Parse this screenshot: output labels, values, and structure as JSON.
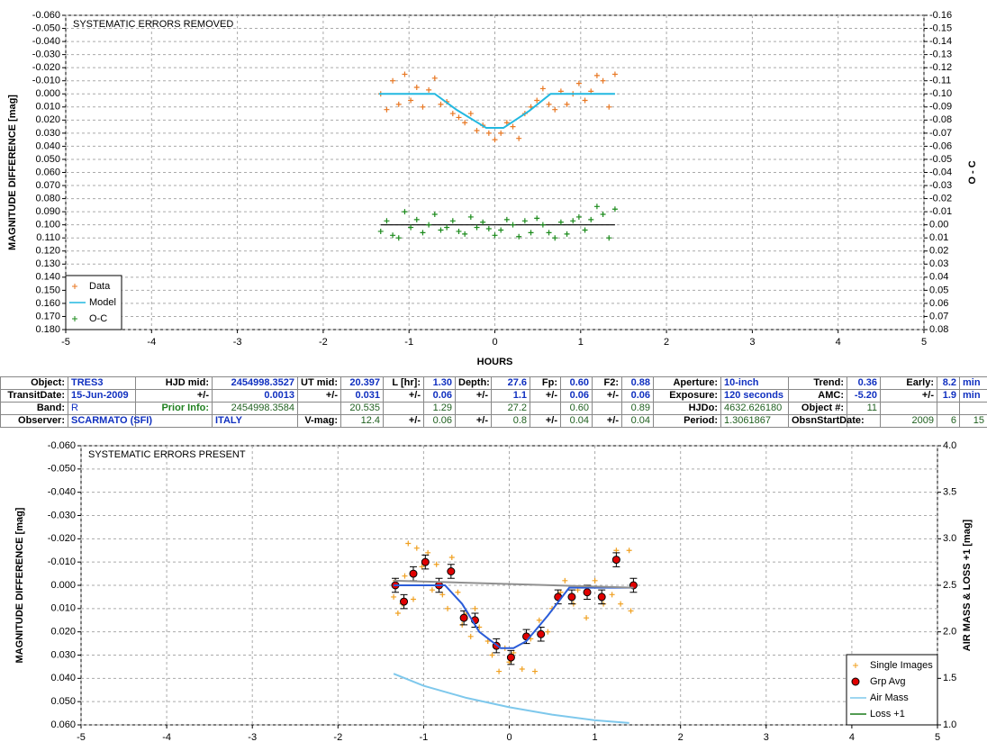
{
  "chart_data": [
    {
      "type": "scatter",
      "title": "SYSTEMATIC ERRORS REMOVED",
      "xlabel": "HOURS",
      "ylabel": "MAGNITUDE DIFFERENCE [mag]",
      "y2label": "O - C",
      "xlim": [
        -5,
        5
      ],
      "xticks": [
        -5,
        -4,
        -3,
        -2,
        -1,
        0,
        1,
        2,
        3,
        4,
        5
      ],
      "ylim": [
        -0.06,
        0.18
      ],
      "y_inverted": true,
      "yticks": [
        {
          "value": -0.06,
          "label": "-0.060"
        },
        {
          "value": -0.05,
          "label": "-0.050"
        },
        {
          "value": -0.04,
          "label": "-0.040"
        },
        {
          "value": -0.03,
          "label": "-0.030"
        },
        {
          "value": -0.02,
          "label": "-0.020"
        },
        {
          "value": -0.01,
          "label": "-0.010"
        },
        {
          "value": 0,
          "label": "0.000"
        },
        {
          "value": 0.01,
          "label": "0.010"
        },
        {
          "value": 0.02,
          "label": "0.020"
        },
        {
          "value": 0.03,
          "label": "0.030"
        },
        {
          "value": 0.04,
          "label": "0.040"
        },
        {
          "value": 0.05,
          "label": "0.050"
        },
        {
          "value": 0.06,
          "label": "0.060"
        },
        {
          "value": 0.07,
          "label": "0.070"
        },
        {
          "value": 0.08,
          "label": "0.080"
        },
        {
          "value": 0.09,
          "label": "0.090"
        },
        {
          "value": 0.1,
          "label": "0.100"
        },
        {
          "value": 0.11,
          "label": "0.110"
        },
        {
          "value": 0.12,
          "label": "0.120"
        },
        {
          "value": 0.13,
          "label": "0.130"
        },
        {
          "value": 0.14,
          "label": "0.140"
        },
        {
          "value": 0.15,
          "label": "0.150"
        },
        {
          "value": 0.16,
          "label": "0.160"
        },
        {
          "value": 0.17,
          "label": "0.170"
        },
        {
          "value": 0.18,
          "label": "0.180"
        }
      ],
      "y2lim": [
        -0.16,
        0.08
      ],
      "y2_inverted": true,
      "y2ticks": [
        {
          "value": -0.16,
          "label": "-0.16"
        },
        {
          "value": -0.15,
          "label": "-0.15"
        },
        {
          "value": -0.14,
          "label": "-0.14"
        },
        {
          "value": -0.13,
          "label": "-0.13"
        },
        {
          "value": -0.12,
          "label": "-0.12"
        },
        {
          "value": -0.11,
          "label": "-0.11"
        },
        {
          "value": -0.1,
          "label": "-0.10"
        },
        {
          "value": -0.09,
          "label": "-0.09"
        },
        {
          "value": -0.08,
          "label": "-0.08"
        },
        {
          "value": -0.07,
          "label": "-0.07"
        },
        {
          "value": -0.06,
          "label": "-0.06"
        },
        {
          "value": -0.05,
          "label": "-0.05"
        },
        {
          "value": -0.04,
          "label": "-0.04"
        },
        {
          "value": -0.03,
          "label": "-0.03"
        },
        {
          "value": -0.02,
          "label": "-0.02"
        },
        {
          "value": -0.01,
          "label": "-0.01"
        },
        {
          "value": 0,
          "label": "0.00"
        },
        {
          "value": 0.01,
          "label": "0.01"
        },
        {
          "value": 0.02,
          "label": "0.02"
        },
        {
          "value": 0.03,
          "label": "0.03"
        },
        {
          "value": 0.04,
          "label": "0.04"
        },
        {
          "value": 0.05,
          "label": "0.05"
        },
        {
          "value": 0.06,
          "label": "0.06"
        },
        {
          "value": 0.07,
          "label": "0.07"
        },
        {
          "value": 0.08,
          "label": "0.08"
        }
      ],
      "grid": true,
      "legend": "bottom-left",
      "hline": {
        "axis": "y2",
        "value": 0,
        "color": "#000000"
      },
      "series": [
        {
          "name": "Data",
          "color": "#e87722",
          "style": "plus",
          "x": [
            -1.33,
            -1.26,
            -1.19,
            -1.12,
            -1.05,
            -0.98,
            -0.91,
            -0.84,
            -0.77,
            -0.7,
            -0.63,
            -0.56,
            -0.49,
            -0.42,
            -0.35,
            -0.28,
            -0.21,
            -0.14,
            -0.07,
            0,
            0.07,
            0.14,
            0.21,
            0.28,
            0.35,
            0.42,
            0.49,
            0.56,
            0.63,
            0.7,
            0.77,
            0.84,
            0.91,
            0.98,
            1.05,
            1.12,
            1.19,
            1.26,
            1.33,
            1.4
          ],
          "values": [
            0,
            0.012,
            -0.01,
            0.008,
            -0.015,
            0.005,
            -0.005,
            0.01,
            -0.003,
            -0.012,
            0.008,
            0.006,
            0.015,
            0.018,
            0.022,
            0.015,
            0.028,
            0.024,
            0.03,
            0.035,
            0.03,
            0.022,
            0.025,
            0.034,
            0.015,
            0.01,
            0.005,
            -0.004,
            0.008,
            0.012,
            -0.002,
            0.008,
            0,
            -0.008,
            0.005,
            -0.002,
            -0.014,
            -0.01,
            0.01,
            -0.015
          ]
        },
        {
          "name": "Model",
          "color": "#22b8e0",
          "style": "line",
          "x": [
            -1.35,
            -0.7,
            -0.45,
            -0.1,
            0.1,
            0.4,
            0.65,
            1.4
          ],
          "values": [
            0,
            0,
            0.012,
            0.026,
            0.026,
            0.013,
            0,
            0
          ]
        },
        {
          "name": "O-C",
          "color": "#1a8a1a",
          "style": "plus",
          "axis": "y2",
          "x": [
            -1.33,
            -1.26,
            -1.19,
            -1.12,
            -1.05,
            -0.98,
            -0.91,
            -0.84,
            -0.77,
            -0.7,
            -0.63,
            -0.56,
            -0.49,
            -0.42,
            -0.35,
            -0.28,
            -0.21,
            -0.14,
            -0.07,
            0,
            0.07,
            0.14,
            0.21,
            0.28,
            0.35,
            0.42,
            0.49,
            0.56,
            0.63,
            0.7,
            0.77,
            0.84,
            0.91,
            0.98,
            1.05,
            1.12,
            1.19,
            1.26,
            1.33,
            1.4
          ],
          "values": [
            0.005,
            -0.003,
            0.008,
            0.01,
            -0.01,
            0.002,
            -0.004,
            0.006,
            0,
            -0.008,
            0.004,
            0.002,
            -0.003,
            0.005,
            0.007,
            -0.006,
            0.002,
            -0.002,
            0.003,
            0.008,
            0.004,
            -0.004,
            0,
            0.009,
            -0.003,
            0.006,
            -0.005,
            0,
            0.006,
            0.01,
            -0.002,
            0.007,
            -0.003,
            -0.006,
            0.004,
            -0.004,
            -0.014,
            -0.008,
            0.01,
            -0.012
          ]
        }
      ]
    },
    {
      "type": "scatter",
      "title": "SYSTEMATIC ERRORS PRESENT",
      "ylabel": "MAGNITUDE DIFFERENCE [mag]",
      "y2label": "AIR MASS & LOSS +1 [mag]",
      "xlim": [
        -5,
        5
      ],
      "xticks": [
        -5,
        -4,
        -3,
        -2,
        -1,
        0,
        1,
        2,
        3,
        4,
        5
      ],
      "ylim": [
        -0.06,
        0.06
      ],
      "y_inverted": true,
      "yticks": [
        {
          "value": -0.06,
          "label": "-0.060"
        },
        {
          "value": -0.05,
          "label": "-0.050"
        },
        {
          "value": -0.04,
          "label": "-0.040"
        },
        {
          "value": -0.03,
          "label": "-0.030"
        },
        {
          "value": -0.02,
          "label": "-0.020"
        },
        {
          "value": -0.01,
          "label": "-0.010"
        },
        {
          "value": 0,
          "label": "0.000"
        },
        {
          "value": 0.01,
          "label": "0.010"
        },
        {
          "value": 0.02,
          "label": "0.020"
        },
        {
          "value": 0.03,
          "label": "0.030"
        },
        {
          "value": 0.04,
          "label": "0.040"
        },
        {
          "value": 0.05,
          "label": "0.050"
        },
        {
          "value": 0.06,
          "label": "0.060"
        }
      ],
      "y2lim": [
        1,
        4
      ],
      "y2_inverted": false,
      "y2ticks": [
        {
          "value": 1,
          "label": "1.0"
        },
        1.5,
        {
          "value": 2,
          "label": "2.0"
        },
        2.5,
        {
          "value": 3,
          "label": "3.0"
        },
        3.5,
        {
          "value": 4,
          "label": "4.0"
        }
      ],
      "grid": true,
      "legend": "bottom-right",
      "series": [
        {
          "name": "Single Images",
          "color": "#f0a020",
          "style": "plus",
          "x": [
            -1.35,
            -1.33,
            -1.3,
            -1.25,
            -1.22,
            -1.18,
            -1.12,
            -1.08,
            -1.02,
            -0.95,
            -0.9,
            -0.85,
            -0.78,
            -0.72,
            -0.67,
            -0.6,
            -0.55,
            -0.5,
            -0.45,
            -0.4,
            -0.35,
            -0.25,
            -0.2,
            -0.12,
            -0.05,
            0,
            0.05,
            0.15,
            0.25,
            0.3,
            0.35,
            0.45,
            0.5,
            0.6,
            0.65,
            0.75,
            0.8,
            0.9,
            1,
            1.1,
            1.2,
            1.25,
            1.3,
            1.4,
            1.42
          ],
          "values": [
            0.005,
            -0.002,
            0.012,
            0.008,
            -0.004,
            -0.018,
            0.006,
            -0.016,
            -0.008,
            -0.014,
            0.002,
            -0.009,
            0.004,
            0.01,
            -0.012,
            0.003,
            0.017,
            0.012,
            0.022,
            0.01,
            0.018,
            0.024,
            0.03,
            0.037,
            0.027,
            0.033,
            0.029,
            0.036,
            0.023,
            0.037,
            0.015,
            0.02,
            0.01,
            0.003,
            -0.002,
            0.008,
            0.002,
            0.014,
            -0.002,
            0.008,
            0.004,
            -0.015,
            0.008,
            -0.015,
            0.011
          ]
        },
        {
          "name": "Grp Avg",
          "color": "#e00000",
          "style": "circle",
          "x": [
            -1.33,
            -1.23,
            -1.12,
            -0.98,
            -0.82,
            -0.68,
            -0.53,
            -0.4,
            -0.15,
            0.02,
            0.2,
            0.37,
            0.57,
            0.73,
            0.91,
            1.08,
            1.25,
            1.45
          ],
          "values": [
            0,
            0.007,
            -0.005,
            -0.01,
            0,
            -0.006,
            0.014,
            0.015,
            0.026,
            0.031,
            0.022,
            0.021,
            0.005,
            0.005,
            0.003,
            0.005,
            -0.011,
            0
          ],
          "errors": [
            0.003,
            0.003,
            0.003,
            0.003,
            0.003,
            0.003,
            0.003,
            0.003,
            0.003,
            0.003,
            0.003,
            0.003,
            0.003,
            0.003,
            0.003,
            0.003,
            0.003,
            0.003
          ]
        },
        {
          "name": "Air Mass",
          "color": "#7ec8ec",
          "style": "line",
          "axis": "y2",
          "x": [
            -1.35,
            -1,
            -0.5,
            0,
            0.5,
            1,
            1.4
          ],
          "values": [
            1.55,
            1.42,
            1.29,
            1.19,
            1.11,
            1.05,
            1.02
          ]
        },
        {
          "name": "Loss +1",
          "color": "#1a7a1a",
          "style": "line",
          "axis": "y2",
          "x": [],
          "values": []
        },
        {
          "color": "#2a5cd8",
          "style": "line",
          "x": [
            -1.35,
            -0.75,
            -0.55,
            -0.35,
            -0.1,
            0.05,
            0.2,
            0.45,
            0.7,
            1.45
          ],
          "values": [
            0,
            0,
            0.008,
            0.02,
            0.027,
            0.027,
            0.024,
            0.013,
            0.001,
            0.001
          ]
        },
        {
          "color": "#909090",
          "style": "line",
          "x": [
            -1.35,
            1.45
          ],
          "values": [
            -0.002,
            0.001
          ]
        }
      ]
    }
  ],
  "table": {
    "rows": [
      [
        "Object:",
        "TRES3",
        "HJD mid:",
        "2454998.3527",
        "UT mid:",
        "20.397",
        "L [hr]:",
        "1.30",
        "Depth:",
        "27.6",
        "Fp:",
        "0.60",
        "F2:",
        "0.88",
        "Aperture:",
        "10-inch",
        "Trend:",
        "0.36",
        "Early:",
        "8.2",
        "min"
      ],
      [
        "TransitDate:",
        "15-Jun-2009",
        "+/-",
        "0.0013",
        "+/-",
        "0.031",
        "+/-",
        "0.06",
        "+/-",
        "1.1",
        "+/-",
        "0.06",
        "+/-",
        "0.06",
        "Exposure:",
        "120 seconds",
        "AMC:",
        "-5.20",
        "+/-",
        "1.9",
        "min"
      ],
      [
        "Band:",
        "R",
        "Prior Info:",
        "2454998.3584",
        null,
        "20.535",
        null,
        "1.29",
        null,
        "27.2",
        null,
        "0.60",
        null,
        "0.89",
        "HJDo:",
        "4632.626180",
        "Object #:",
        "11",
        null,
        null,
        null
      ],
      [
        "Observer:",
        "SCARMATO (SFI)",
        null,
        "ITALY",
        "V-mag:",
        "12.4",
        "+/-",
        "0.06",
        "+/-",
        "0.8",
        "+/-",
        "0.04",
        "+/-",
        "0.04",
        "Period:",
        "1.3061867",
        "ObsnStartDate:",
        null,
        "2009",
        "6",
        "15"
      ]
    ]
  }
}
